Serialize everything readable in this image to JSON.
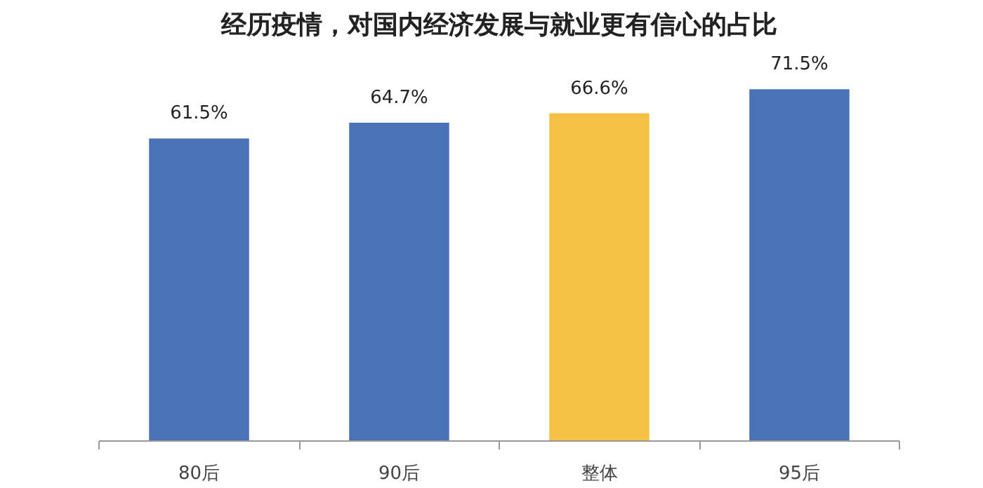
{
  "chart_data": {
    "type": "bar",
    "title": "经历疫情，对国内经济发展与就业更有信心的占比",
    "categories": [
      "80后",
      "90后",
      "整体",
      "95后"
    ],
    "values": [
      61.5,
      64.7,
      66.6,
      71.5
    ],
    "colors": [
      "#4a72b8",
      "#4a72b8",
      "#f5c142",
      "#4a72b8"
    ],
    "value_labels": [
      "61.5%",
      "64.7%",
      "66.6%",
      "71.5%"
    ],
    "tick_labels": "x",
    "grid": false
  }
}
